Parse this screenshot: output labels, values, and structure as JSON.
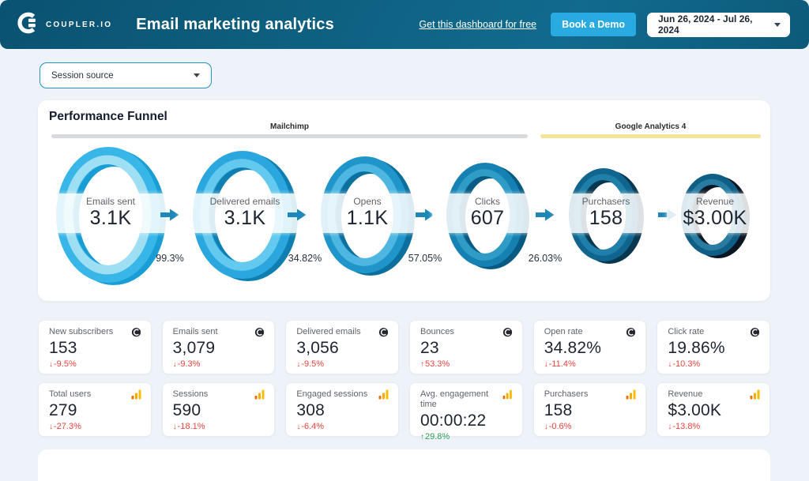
{
  "header": {
    "brand": "COUPLER.IO",
    "title": "Email marketing analytics",
    "link_label": "Get this dashboard for free",
    "demo_button_label": "Book a Demo",
    "date_range": "Jun 26, 2024 - Jul 26, 2024",
    "demo_button_color": "#29abe2"
  },
  "filters": {
    "session_source_label": "Session source"
  },
  "funnel_panel": {
    "title": "Performance Funnel",
    "sources": [
      {
        "label": "Mailchimp",
        "bar_color": "#d8dadd"
      },
      {
        "label": "Google Analytics 4",
        "bar_color": "#f6e39a"
      }
    ]
  },
  "chart_data": {
    "type": "funnel",
    "title": "Performance Funnel",
    "stages": [
      {
        "label": "Emails sent",
        "value": "3.1K",
        "conversion_to_next": "99.3%",
        "ring_main": "#38b6e8",
        "ring_light": "#9edff4",
        "ring_dark": "#189dd4"
      },
      {
        "label": "Delivered emails",
        "value": "3.1K",
        "conversion_to_next": "34.82%",
        "ring_main": "#2aa7de",
        "ring_light": "#63c9ee",
        "ring_dark": "#0f7fb2"
      },
      {
        "label": "Opens",
        "value": "1.1K",
        "conversion_to_next": "57.05%",
        "ring_main": "#1f95ca",
        "ring_light": "#4db6e1",
        "ring_dark": "#0c6f9e"
      },
      {
        "label": "Clicks",
        "value": "607",
        "conversion_to_next": "26.03%",
        "ring_main": "#1580b2",
        "ring_light": "#2f9cc6",
        "ring_dark": "#085a82"
      },
      {
        "label": "Purchasers",
        "value": "158",
        "conversion_to_next": null,
        "ring_main": "#10658f",
        "ring_light": "#1f7fa8",
        "ring_dark": "#093750"
      },
      {
        "label": "Revenue",
        "value": "$3.00K",
        "conversion_to_next": null,
        "ring_main": "#0f5e86",
        "ring_light": "#2a7ba0",
        "ring_dark": "#0b1622"
      }
    ]
  },
  "cards": {
    "row1": [
      {
        "label": "New subscribers",
        "value": "153",
        "change": "-9.5%",
        "direction": "down",
        "sentiment": "negative",
        "icon": "mailchimp-icon"
      },
      {
        "label": "Emails sent",
        "value": "3,079",
        "change": "-9.3%",
        "direction": "down",
        "sentiment": "negative",
        "icon": "mailchimp-icon"
      },
      {
        "label": "Delivered emails",
        "value": "3,056",
        "change": "-9.5%",
        "direction": "down",
        "sentiment": "negative",
        "icon": "mailchimp-icon"
      },
      {
        "label": "Bounces",
        "value": "23",
        "change": "53.3%",
        "direction": "up",
        "sentiment": "negative",
        "icon": "mailchimp-icon"
      },
      {
        "label": "Open rate",
        "value": "34.82%",
        "change": "-11.4%",
        "direction": "down",
        "sentiment": "negative",
        "icon": "mailchimp-icon"
      },
      {
        "label": "Click rate",
        "value": "19.86%",
        "change": "-10.3%",
        "direction": "down",
        "sentiment": "negative",
        "icon": "mailchimp-icon"
      }
    ],
    "row2": [
      {
        "label": "Total users",
        "value": "279",
        "change": "-27.3%",
        "direction": "down",
        "sentiment": "negative",
        "icon": "ga4-icon"
      },
      {
        "label": "Sessions",
        "value": "590",
        "change": "-18.1%",
        "direction": "down",
        "sentiment": "negative",
        "icon": "ga4-icon"
      },
      {
        "label": "Engaged sessions",
        "value": "308",
        "change": "-6.4%",
        "direction": "down",
        "sentiment": "negative",
        "icon": "ga4-icon"
      },
      {
        "label": "Avg. engagement time",
        "value": "00:00:22",
        "change": "29.8%",
        "direction": "up",
        "sentiment": "positive",
        "icon": "ga4-icon"
      },
      {
        "label": "Purchasers",
        "value": "158",
        "change": "-0.6%",
        "direction": "down",
        "sentiment": "negative",
        "icon": "ga4-icon"
      },
      {
        "label": "Revenue",
        "value": "$3.00K",
        "change": "-13.8%",
        "direction": "down",
        "sentiment": "negative",
        "icon": "ga4-icon"
      }
    ]
  },
  "colors": {
    "negative": "#e8433c",
    "positive": "#2d9e58",
    "arrow_blue": "#1d87ba"
  }
}
